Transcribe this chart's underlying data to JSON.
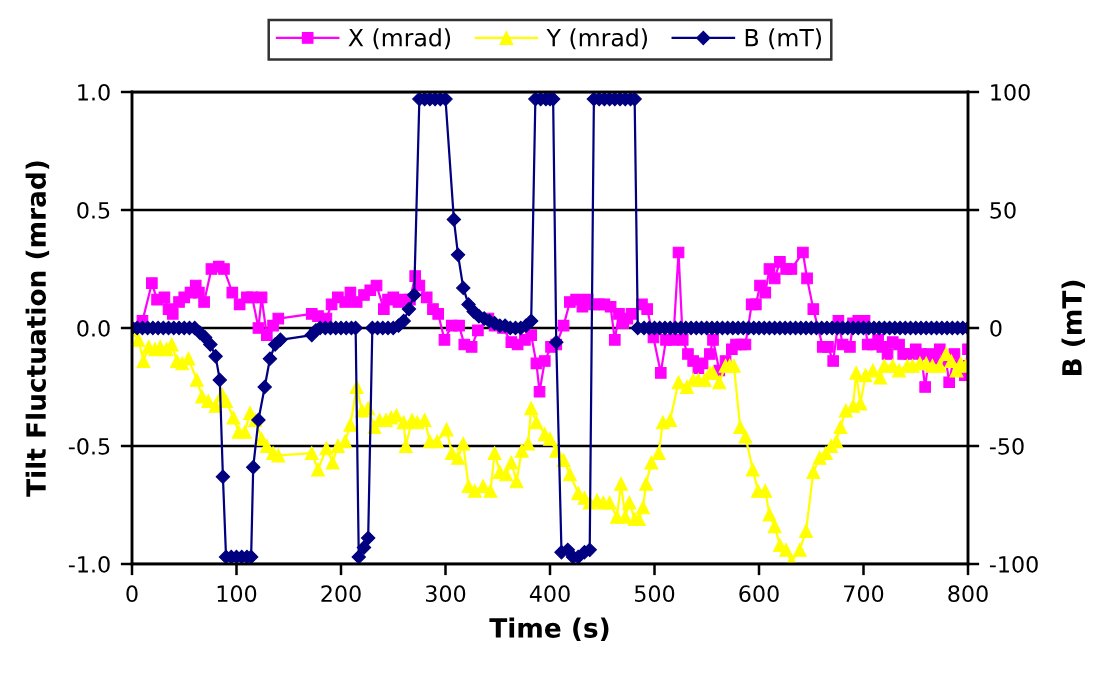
{
  "chart_data": {
    "type": "line",
    "xlabel": "Time (s)",
    "ylabel": "Tilt Fluctuation (mrad)",
    "y2label": "B (mT)",
    "xlim": [
      0,
      800
    ],
    "xticks": [
      0,
      100,
      200,
      300,
      400,
      500,
      600,
      700,
      800
    ],
    "ylim": [
      -1,
      1
    ],
    "yticks": [
      {
        "value": -1,
        "label": "-1.0"
      },
      {
        "value": -0.5,
        "label": "-0.5"
      },
      {
        "value": 0,
        "label": "0.0"
      },
      {
        "value": 0.5,
        "label": "0.5"
      },
      {
        "value": 1,
        "label": "1.0"
      }
    ],
    "y2lim": [
      -100,
      100
    ],
    "y2ticks": [
      -100,
      -50,
      0,
      50,
      100
    ],
    "grid": "y",
    "legend": "top",
    "line_style": "solid",
    "series": [
      {
        "name": "X (mrad)",
        "color": "#ff00ff",
        "marker": "square",
        "axis": "y",
        "x": [
          0,
          10,
          19,
          24,
          31,
          35,
          39,
          45,
          50,
          56,
          61,
          64,
          69,
          76,
          83,
          88,
          96,
          103,
          110,
          115,
          121,
          124,
          129,
          135,
          140,
          172,
          178,
          186,
          191,
          197,
          204,
          209,
          215,
          222,
          228,
          234,
          241,
          245,
          250,
          255,
          261,
          266,
          271,
          275,
          282,
          288,
          293,
          299,
          306,
          313,
          318,
          325,
          331,
          341,
          347,
          355,
          363,
          369,
          376,
          382,
          387,
          390,
          395,
          401,
          406,
          413,
          419,
          425,
          431,
          436,
          442,
          447,
          452,
          458,
          462,
          466,
          470,
          474,
          478,
          488,
          493,
          499,
          506,
          511,
          518,
          523,
          527,
          532,
          537,
          542,
          546,
          553,
          556,
          562,
          568,
          574,
          578,
          583,
          587,
          593,
          597,
          601,
          606,
          610,
          615,
          620,
          626,
          631,
          642,
          646,
          652,
          661,
          666,
          671,
          676,
          680,
          687,
          690,
          695,
          701,
          704,
          709,
          714,
          718,
          723,
          728,
          734,
          738,
          744,
          750,
          755,
          759,
          763,
          768,
          773,
          779,
          782,
          787,
          792,
          797,
          800
        ],
        "values": [
          0.0,
          0.03,
          0.19,
          0.12,
          0.13,
          0.08,
          0.06,
          0.11,
          0.13,
          0.15,
          0.18,
          0.15,
          0.11,
          0.25,
          0.26,
          0.25,
          0.15,
          0.1,
          0.13,
          0.13,
          0.0,
          0.13,
          -0.03,
          0.01,
          0.04,
          0.06,
          0.05,
          0.04,
          0.1,
          0.13,
          0.11,
          0.15,
          0.11,
          0.14,
          0.16,
          0.18,
          0.08,
          0.12,
          0.13,
          0.11,
          0.12,
          0.12,
          0.22,
          0.18,
          0.13,
          0.08,
          0.06,
          -0.05,
          0.01,
          0.01,
          -0.07,
          -0.08,
          -0.01,
          0.04,
          0.01,
          0.0,
          -0.06,
          -0.07,
          -0.05,
          -0.03,
          -0.15,
          -0.27,
          -0.14,
          -0.08,
          -0.07,
          0.01,
          0.11,
          0.12,
          0.09,
          0.12,
          0.1,
          0.1,
          0.1,
          0.09,
          -0.05,
          0.06,
          0.02,
          0.04,
          0.06,
          0.1,
          0.08,
          -0.04,
          -0.19,
          -0.05,
          -0.05,
          0.32,
          -0.05,
          -0.11,
          -0.14,
          -0.17,
          -0.15,
          -0.11,
          -0.05,
          -0.18,
          -0.14,
          -0.09,
          -0.07,
          -0.07,
          -0.07,
          0.1,
          0.1,
          0.18,
          0.15,
          0.25,
          0.21,
          0.28,
          0.25,
          0.25,
          0.32,
          0.21,
          0.08,
          -0.08,
          -0.08,
          -0.14,
          0.03,
          -0.07,
          -0.08,
          0.02,
          0.03,
          0.03,
          -0.07,
          -0.07,
          -0.05,
          -0.08,
          -0.11,
          -0.06,
          -0.07,
          -0.11,
          -0.11,
          -0.09,
          -0.11,
          -0.25,
          -0.11,
          -0.13,
          -0.09,
          -0.14,
          -0.23,
          -0.11,
          -0.16,
          -0.2,
          -0.09
        ]
      },
      {
        "name": "Y (mrad)",
        "color": "#ffff00",
        "marker": "triangle",
        "axis": "y",
        "x": [
          0,
          6,
          11,
          16,
          22,
          27,
          33,
          38,
          43,
          48,
          54,
          62,
          67,
          73,
          80,
          86,
          90,
          97,
          102,
          108,
          113,
          118,
          124,
          129,
          135,
          140,
          172,
          178,
          186,
          192,
          197,
          204,
          209,
          215,
          220,
          226,
          232,
          237,
          243,
          248,
          253,
          260,
          262,
          268,
          273,
          280,
          285,
          292,
          301,
          306,
          312,
          317,
          322,
          328,
          336,
          343,
          347,
          352,
          358,
          363,
          368,
          373,
          379,
          382,
          387,
          395,
          400,
          406,
          413,
          419,
          427,
          433,
          438,
          445,
          451,
          457,
          464,
          468,
          472,
          476,
          481,
          485,
          489,
          492,
          497,
          504,
          508,
          515,
          523,
          531,
          537,
          542,
          548,
          553,
          556,
          562,
          568,
          572,
          576,
          582,
          587,
          594,
          599,
          606,
          610,
          615,
          620,
          626,
          631,
          639,
          645,
          652,
          658,
          664,
          669,
          674,
          678,
          683,
          690,
          693,
          697,
          702,
          709,
          716,
          720,
          728,
          734,
          742,
          747,
          754,
          760,
          766,
          773,
          779,
          784,
          789,
          793,
          798
        ],
        "values": [
          -0.01,
          -0.05,
          -0.14,
          -0.08,
          -0.09,
          -0.08,
          -0.09,
          -0.07,
          -0.14,
          -0.15,
          -0.13,
          -0.22,
          -0.29,
          -0.31,
          -0.33,
          -0.28,
          -0.31,
          -0.38,
          -0.44,
          -0.44,
          -0.36,
          -0.39,
          -0.47,
          -0.5,
          -0.53,
          -0.54,
          -0.53,
          -0.6,
          -0.51,
          -0.57,
          -0.5,
          -0.48,
          -0.41,
          -0.25,
          -0.35,
          -0.34,
          -0.42,
          -0.39,
          -0.39,
          -0.38,
          -0.37,
          -0.4,
          -0.5,
          -0.39,
          -0.4,
          -0.39,
          -0.48,
          -0.48,
          -0.43,
          -0.53,
          -0.55,
          -0.49,
          -0.67,
          -0.69,
          -0.67,
          -0.69,
          -0.53,
          -0.61,
          -0.62,
          -0.57,
          -0.65,
          -0.52,
          -0.49,
          -0.34,
          -0.4,
          -0.45,
          -0.47,
          -0.52,
          -0.56,
          -0.62,
          -0.7,
          -0.72,
          -0.74,
          -0.73,
          -0.74,
          -0.74,
          -0.8,
          -0.66,
          -0.8,
          -0.74,
          -0.81,
          -0.81,
          -0.76,
          -0.66,
          -0.57,
          -0.53,
          -0.4,
          -0.39,
          -0.23,
          -0.25,
          -0.22,
          -0.22,
          -0.22,
          -0.19,
          -0.19,
          -0.23,
          -0.16,
          -0.16,
          -0.16,
          -0.42,
          -0.46,
          -0.6,
          -0.69,
          -0.69,
          -0.79,
          -0.84,
          -0.92,
          -0.94,
          -0.99,
          -0.94,
          -0.86,
          -0.61,
          -0.55,
          -0.53,
          -0.5,
          -0.48,
          -0.42,
          -0.35,
          -0.33,
          -0.19,
          -0.32,
          -0.2,
          -0.18,
          -0.21,
          -0.16,
          -0.16,
          -0.18,
          -0.16,
          -0.16,
          -0.15,
          -0.15,
          -0.16,
          -0.16,
          -0.11,
          -0.14,
          -0.18,
          -0.15,
          -0.16
        ]
      },
      {
        "name": "B (mT)",
        "color": "#000080",
        "marker": "diamond",
        "axis": "y2",
        "x": [
          0,
          5,
          10,
          15,
          20,
          25,
          30,
          35,
          40,
          45,
          50,
          55,
          60,
          65,
          70,
          75,
          80,
          84,
          87,
          90,
          95,
          100,
          105,
          110,
          114,
          116,
          121,
          127,
          132,
          137,
          142,
          172,
          176,
          180,
          185,
          190,
          195,
          200,
          205,
          210,
          214,
          217,
          222,
          226,
          230,
          235,
          240,
          245,
          250,
          255,
          260,
          265,
          270,
          275,
          280,
          285,
          290,
          295,
          300,
          308,
          312,
          317,
          322,
          327,
          332,
          337,
          342,
          347,
          352,
          357,
          362,
          367,
          372,
          377,
          382,
          386,
          391,
          396,
          400,
          403,
          406,
          411,
          417,
          422,
          427,
          433,
          438,
          442,
          447,
          452,
          457,
          462,
          467,
          472,
          477,
          481,
          484,
          490,
          495,
          500,
          505,
          510,
          515,
          520,
          525,
          530,
          535,
          540,
          545,
          550,
          555,
          560,
          565,
          570,
          575,
          580,
          585,
          590,
          595,
          600,
          605,
          610,
          615,
          620,
          625,
          630,
          635,
          640,
          645,
          650,
          655,
          660,
          665,
          670,
          675,
          680,
          685,
          690,
          695,
          700,
          705,
          710,
          715,
          720,
          725,
          730,
          735,
          740,
          745,
          750,
          755,
          760,
          765,
          770,
          775,
          780,
          785,
          790,
          795,
          800
        ],
        "values": [
          0,
          0,
          0,
          0,
          0,
          0,
          0,
          0,
          0,
          0,
          0,
          0,
          0,
          -2,
          -4,
          -7,
          -12,
          -22,
          -63,
          -97,
          -97,
          -97,
          -97,
          -97,
          -97,
          -59,
          -39,
          -25,
          -13,
          -7,
          -5,
          -3,
          -1,
          0,
          0,
          0,
          0,
          0,
          0,
          0,
          0,
          -97,
          -93,
          -89,
          0,
          0,
          0,
          0,
          0,
          1,
          3,
          8,
          14,
          97,
          97,
          97,
          97,
          97,
          97,
          46,
          31,
          17,
          10,
          7,
          5,
          4,
          3,
          2,
          1,
          1,
          0,
          0,
          0,
          1,
          3,
          97,
          97,
          97,
          97,
          97,
          -6,
          -95,
          -94,
          -97,
          -97,
          -95,
          -94,
          97,
          97,
          97,
          97,
          97,
          97,
          97,
          97,
          97,
          0,
          0,
          0,
          0,
          0,
          0,
          0,
          0,
          0,
          0,
          0,
          0,
          0,
          0,
          0,
          0,
          0,
          0,
          0,
          0,
          0,
          0,
          0,
          0,
          0,
          0,
          0,
          0,
          0,
          0,
          0,
          0,
          0,
          0,
          0,
          0,
          0,
          0,
          0,
          0,
          0,
          0,
          0,
          0,
          0,
          0,
          0,
          0,
          0,
          0,
          0,
          0,
          0,
          0,
          0,
          0,
          0,
          0,
          0,
          0,
          0,
          0,
          0,
          0
        ]
      }
    ]
  }
}
